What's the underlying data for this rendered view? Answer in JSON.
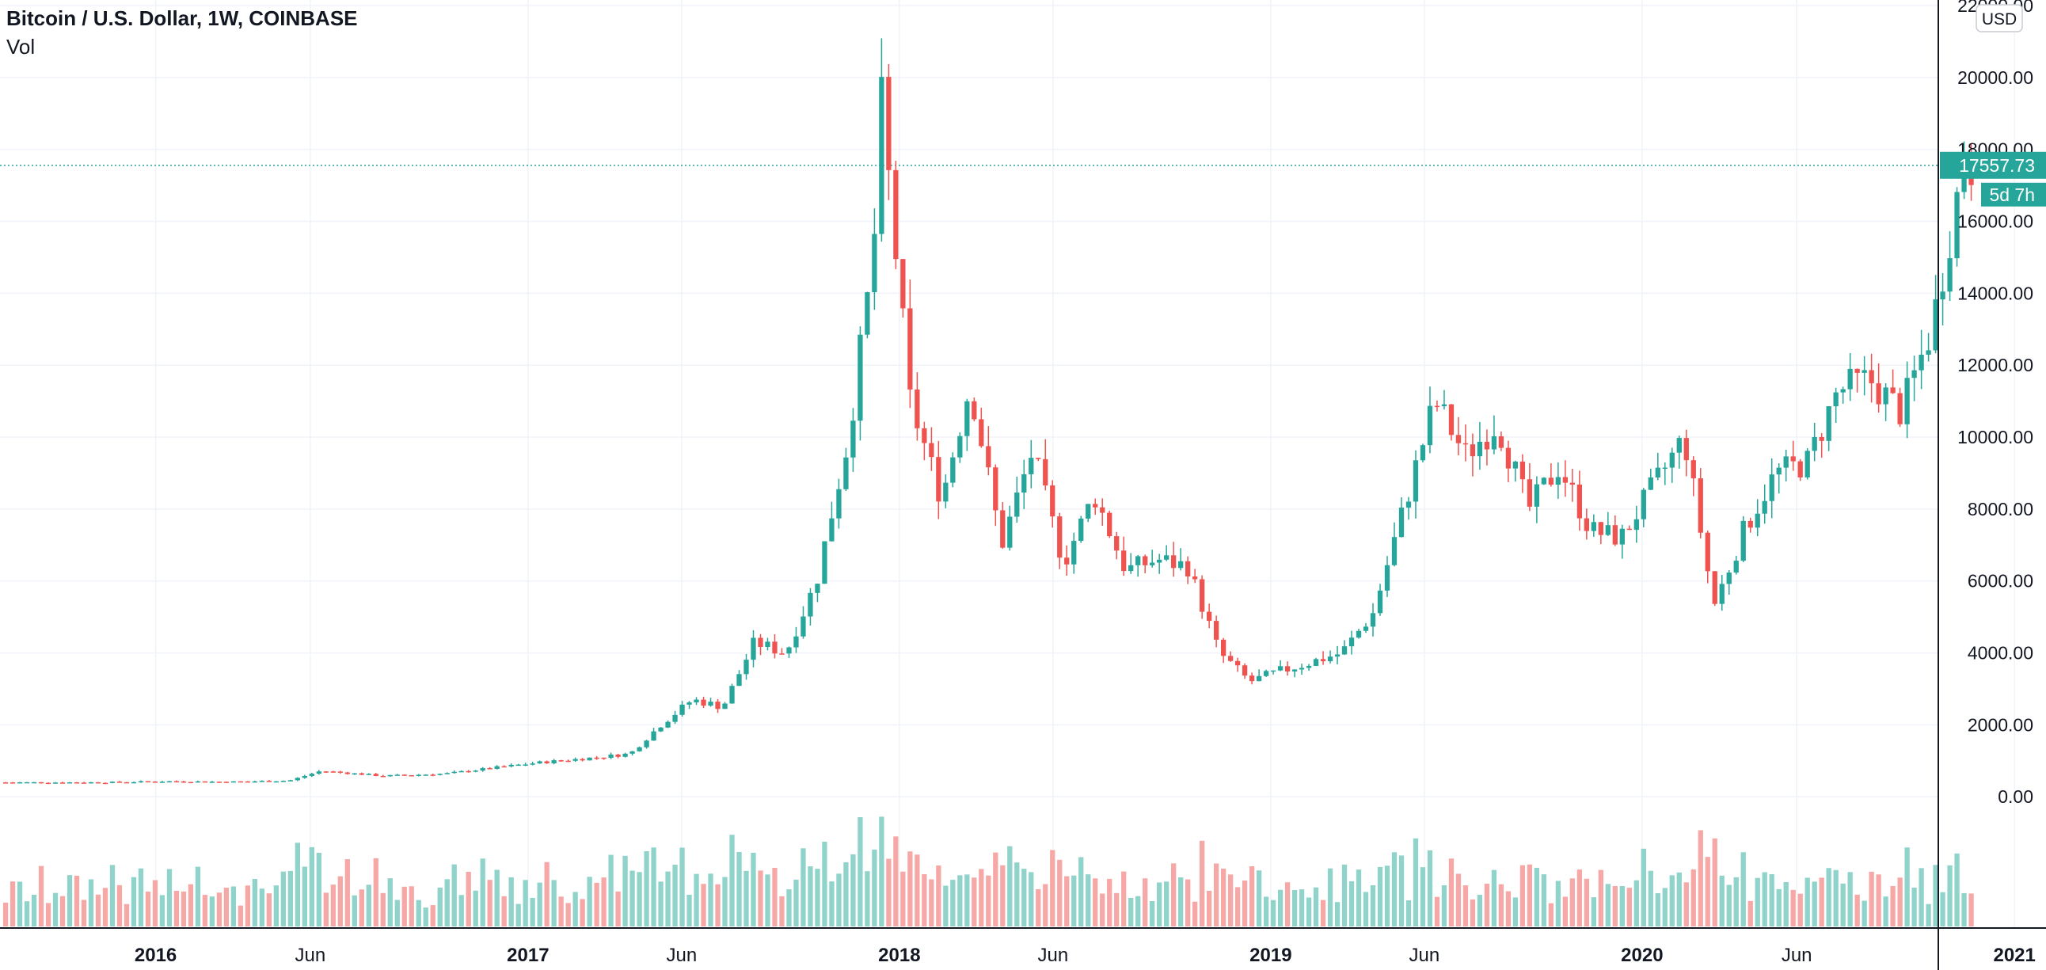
{
  "legend": {
    "title": "Bitcoin / U.S. Dollar, 1W, COINBASE",
    "volume_label": "Vol"
  },
  "price_badge": {
    "value": "17557.73",
    "countdown": "5d 7h"
  },
  "currency_button": "USD",
  "colors": {
    "up": "#26a69a",
    "down": "#ef5350",
    "vol_up": "#8fd3cb",
    "vol_down": "#f6a8a6",
    "grid": "#f0f3fa",
    "axis": "#131722"
  },
  "chart_data": {
    "type": "candlestick",
    "title": "Bitcoin / U.S. Dollar, 1W, COINBASE",
    "interval": "1W",
    "x_ticks": [
      "2016",
      "Jun",
      "2017",
      "Jun",
      "2018",
      "Jun",
      "2019",
      "Jun",
      "2020",
      "Jun",
      "2021"
    ],
    "y_ticks": [
      "22000.00",
      "20000.00",
      "18000.00",
      "16000.00",
      "14000.00",
      "12000.00",
      "10000.00",
      "8000.00",
      "6000.00",
      "4000.00",
      "2000.00",
      "0.00"
    ],
    "ylim": [
      -1800,
      22000
    ],
    "last_price": 17557.73,
    "grid": true,
    "series": [
      {
        "name": "Price",
        "points": [
          {
            "date": "2015-11",
            "close": 400
          },
          {
            "date": "2016-01",
            "close": 430
          },
          {
            "date": "2016-03",
            "close": 415
          },
          {
            "date": "2016-05",
            "close": 450
          },
          {
            "date": "2016-06",
            "close": 720
          },
          {
            "date": "2016-08",
            "close": 580
          },
          {
            "date": "2016-10",
            "close": 640
          },
          {
            "date": "2016-12",
            "close": 850
          },
          {
            "date": "2017-01",
            "close": 950
          },
          {
            "date": "2017-03",
            "close": 1100
          },
          {
            "date": "2017-04",
            "close": 1200
          },
          {
            "date": "2017-05",
            "close": 2000
          },
          {
            "date": "2017-06",
            "close": 2700
          },
          {
            "date": "2017-07",
            "close": 2500
          },
          {
            "date": "2017-08",
            "close": 4300
          },
          {
            "date": "2017-09",
            "close": 4000
          },
          {
            "date": "2017-10",
            "close": 6000
          },
          {
            "date": "2017-11",
            "close": 9900
          },
          {
            "date": "2017-12-10",
            "close": 15000
          },
          {
            "date": "2017-12-17",
            "close": 19500
          },
          {
            "date": "2018-01",
            "close": 11000
          },
          {
            "date": "2018-02",
            "close": 8300
          },
          {
            "date": "2018-03",
            "close": 11500
          },
          {
            "date": "2018-04",
            "close": 7000
          },
          {
            "date": "2018-05",
            "close": 9600
          },
          {
            "date": "2018-06",
            "close": 6500
          },
          {
            "date": "2018-07",
            "close": 8400
          },
          {
            "date": "2018-08",
            "close": 6300
          },
          {
            "date": "2018-09",
            "close": 6600
          },
          {
            "date": "2018-10",
            "close": 6400
          },
          {
            "date": "2018-11",
            "close": 4000
          },
          {
            "date": "2018-12",
            "close": 3200
          },
          {
            "date": "2019-01",
            "close": 3500
          },
          {
            "date": "2019-03",
            "close": 4000
          },
          {
            "date": "2019-04",
            "close": 5100
          },
          {
            "date": "2019-05",
            "close": 8000
          },
          {
            "date": "2019-06",
            "close": 11000
          },
          {
            "date": "2019-07",
            "close": 9500
          },
          {
            "date": "2019-08",
            "close": 10400
          },
          {
            "date": "2019-09",
            "close": 8000
          },
          {
            "date": "2019-10",
            "close": 9200
          },
          {
            "date": "2019-11",
            "close": 7400
          },
          {
            "date": "2019-12",
            "close": 7200
          },
          {
            "date": "2020-01",
            "close": 8600
          },
          {
            "date": "2020-02",
            "close": 10000
          },
          {
            "date": "2020-03",
            "close": 5300
          },
          {
            "date": "2020-04",
            "close": 7500
          },
          {
            "date": "2020-05",
            "close": 9000
          },
          {
            "date": "2020-06",
            "close": 9300
          },
          {
            "date": "2020-07",
            "close": 11300
          },
          {
            "date": "2020-08",
            "close": 11600
          },
          {
            "date": "2020-09",
            "close": 10700
          },
          {
            "date": "2020-10",
            "close": 13000
          },
          {
            "date": "2020-11",
            "close": 17557.73
          }
        ]
      }
    ]
  }
}
